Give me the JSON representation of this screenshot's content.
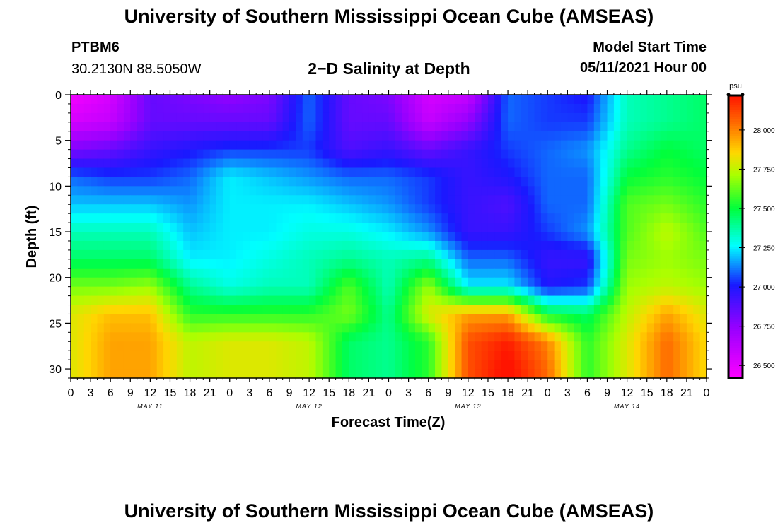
{
  "header": {
    "title": "University of Southern Mississippi Ocean Cube (AMSEAS)",
    "footer_title": "University of Southern Mississippi Ocean Cube (AMSEAS)",
    "station_id": "PTBM6",
    "station_coords": "30.2130N  88.5050W",
    "model_start_label": "Model Start Time",
    "model_start_value": "05/11/2021 Hour 00"
  },
  "chart_data": {
    "type": "heatmap",
    "title": "2−D Salinity at Depth",
    "xlabel": "Forecast Time(Z)",
    "ylabel": "Depth (ft)",
    "x_tick_labels": [
      "0",
      "3",
      "6",
      "9",
      "12",
      "15",
      "18",
      "21",
      "0",
      "3",
      "6",
      "9",
      "12",
      "15",
      "18",
      "21",
      "0",
      "3",
      "6",
      "9",
      "12",
      "15",
      "18",
      "21",
      "0",
      "3",
      "6",
      "9",
      "12",
      "15",
      "18",
      "21",
      "0"
    ],
    "x_day_labels": [
      "MAY 11",
      "MAY 12",
      "MAY 13",
      "MAY 14"
    ],
    "xlim_hours": [
      0,
      96
    ],
    "y_tick_labels": [
      "0",
      "5",
      "10",
      "15",
      "20",
      "25",
      "30"
    ],
    "ylim_ft": [
      0,
      31
    ],
    "y_inverted": true,
    "colorbar": {
      "unit": "psu",
      "range": [
        26.42,
        28.22
      ],
      "tick_labels": [
        "26.500",
        "26.750",
        "27.000",
        "27.250",
        "27.500",
        "27.750",
        "28.000"
      ],
      "tick_values": [
        26.5,
        26.75,
        27.0,
        27.25,
        27.5,
        27.75,
        28.0
      ]
    },
    "grid_hours": [
      0,
      6,
      12,
      18,
      24,
      30,
      36,
      42,
      48,
      54,
      60,
      66,
      72,
      78,
      84,
      90,
      96
    ],
    "grid_depths_ft": [
      0,
      3,
      6,
      9,
      12,
      15,
      18,
      21,
      24,
      27,
      30,
      31
    ],
    "salinity_psu": [
      [
        26.45,
        26.55,
        26.85,
        26.8,
        26.75,
        26.8,
        27.1,
        26.85,
        26.8,
        26.55,
        26.6,
        27.1,
        27.05,
        27.0,
        27.35,
        27.4,
        27.45
      ],
      [
        26.55,
        26.6,
        26.85,
        26.85,
        26.85,
        26.85,
        27.1,
        26.85,
        26.85,
        26.6,
        26.75,
        27.1,
        27.05,
        27.05,
        27.35,
        27.4,
        27.45
      ],
      [
        26.8,
        26.85,
        26.95,
        27.0,
        27.05,
        27.05,
        27.05,
        26.9,
        26.95,
        26.85,
        26.95,
        27.05,
        27.1,
        27.15,
        27.4,
        27.5,
        27.45
      ],
      [
        27.1,
        27.05,
        27.05,
        27.1,
        27.25,
        27.2,
        27.15,
        27.1,
        27.1,
        27.05,
        26.95,
        27.0,
        27.1,
        27.1,
        27.5,
        27.55,
        27.5
      ],
      [
        27.2,
        27.2,
        27.2,
        27.15,
        27.25,
        27.25,
        27.25,
        27.2,
        27.15,
        27.05,
        26.95,
        26.9,
        27.1,
        27.1,
        27.6,
        27.65,
        27.55
      ],
      [
        27.35,
        27.35,
        27.35,
        27.2,
        27.25,
        27.25,
        27.3,
        27.3,
        27.25,
        27.15,
        26.95,
        26.95,
        27.05,
        27.15,
        27.6,
        27.75,
        27.6
      ],
      [
        27.45,
        27.45,
        27.45,
        27.25,
        27.25,
        27.3,
        27.35,
        27.4,
        27.35,
        27.4,
        27.1,
        27.1,
        26.95,
        26.95,
        27.65,
        27.7,
        27.65
      ],
      [
        27.65,
        27.65,
        27.7,
        27.4,
        27.3,
        27.35,
        27.35,
        27.6,
        27.35,
        27.7,
        27.25,
        27.25,
        27.0,
        27.05,
        27.7,
        27.75,
        27.7
      ],
      [
        27.8,
        27.9,
        27.9,
        27.55,
        27.55,
        27.55,
        27.55,
        27.65,
        27.4,
        27.8,
        27.95,
        27.95,
        27.5,
        27.45,
        27.75,
        27.95,
        27.8
      ],
      [
        27.8,
        27.95,
        27.95,
        27.75,
        27.8,
        27.8,
        27.75,
        27.45,
        27.4,
        27.55,
        28.1,
        28.2,
        28.0,
        27.55,
        27.8,
        28.05,
        27.85
      ],
      [
        27.8,
        27.95,
        27.95,
        27.75,
        27.8,
        27.8,
        27.75,
        27.45,
        27.4,
        27.55,
        28.1,
        28.25,
        28.05,
        27.55,
        27.8,
        28.05,
        27.85
      ],
      [
        27.8,
        27.95,
        27.95,
        27.75,
        27.8,
        27.8,
        27.75,
        27.45,
        27.4,
        27.55,
        28.1,
        28.25,
        28.05,
        27.55,
        27.8,
        28.05,
        27.85
      ]
    ]
  }
}
